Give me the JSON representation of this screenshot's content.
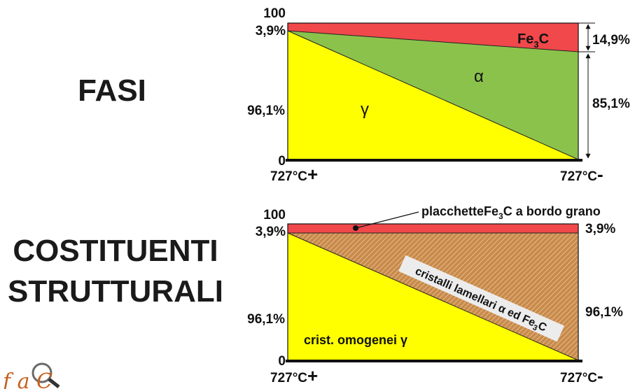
{
  "titles": {
    "phases": "FASI",
    "constituents_line1": "COSTITUENTI",
    "constituents_line2": "STRUTTURALI"
  },
  "colors": {
    "fe3c": "#f0484b",
    "alpha": "#8bc24c",
    "gamma": "#ffff00",
    "pearlite": "#c98a4a"
  },
  "top_diagram": {
    "y_top": "100",
    "y_eutectoid": "3,9%",
    "y_gamma": "96,1%",
    "y_zero": "0",
    "x_left": "727°C",
    "x_left_sign": "+",
    "x_right": "727°C",
    "x_right_sign": "-",
    "phase_fe3c": {
      "base": "Fe",
      "sub": "3",
      "suffix": "C"
    },
    "phase_alpha": "α",
    "phase_gamma": "γ",
    "right_fe3c_pct": "14,9%",
    "right_alpha_pct": "85,1%"
  },
  "bottom_diagram": {
    "y_top": "100",
    "y_eutectoid": "3,9%",
    "y_gamma": "96,1%",
    "y_zero": "0",
    "x_left": "727°C",
    "x_left_sign": "+",
    "x_right": "727°C",
    "x_right_sign": "-",
    "right_top_pct": "3,9%",
    "right_mid_pct": "96,1%",
    "callout": {
      "pre": "placchetteFe",
      "sub": "3",
      "post": "C a bordo grano"
    },
    "lamellar": {
      "pre": "cristalli lamellari α ed Fe",
      "sub": "3",
      "post": "C"
    },
    "homogeneous": "crist. omogenei γ"
  },
  "logo_text": "f a C"
}
